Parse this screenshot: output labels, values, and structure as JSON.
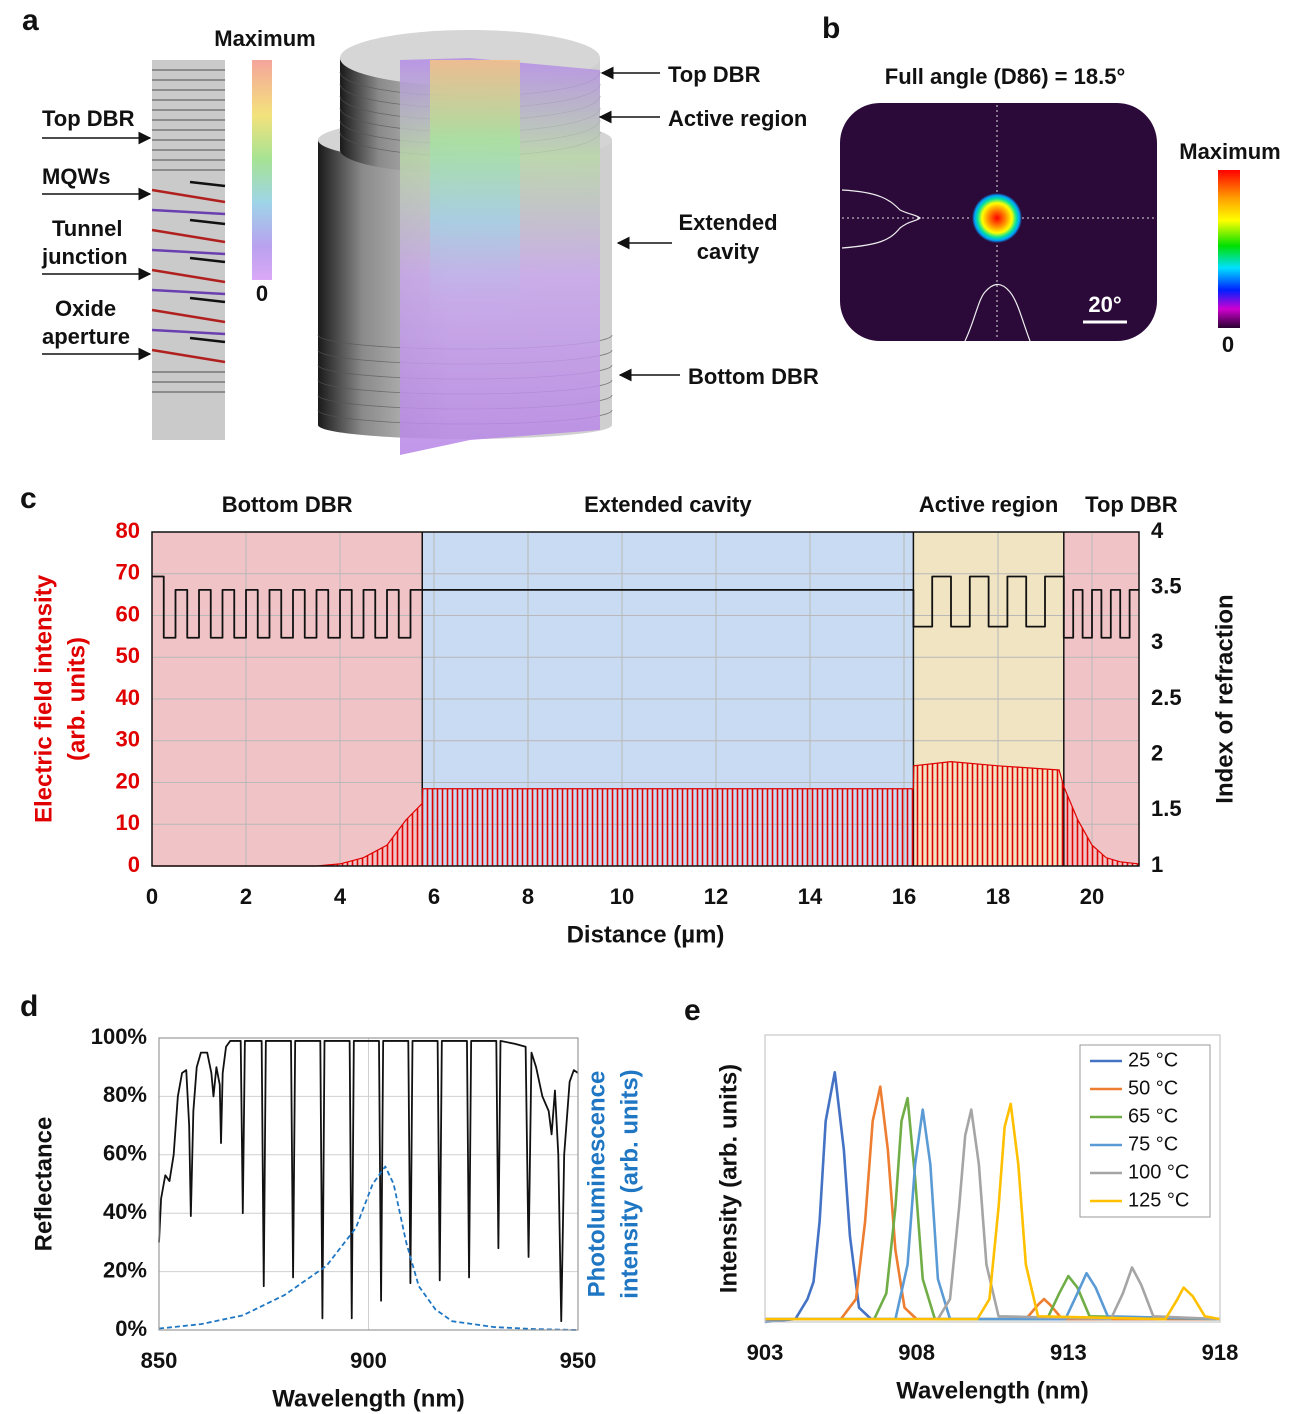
{
  "figure": {
    "panel_labels": [
      "a",
      "b",
      "c",
      "d",
      "e"
    ],
    "a": {
      "colorbar": {
        "max": "Maximum",
        "min": "0"
      },
      "layer_labels": [
        [
          "Top DBR"
        ],
        [
          "MQWs"
        ],
        [
          "Tunnel",
          "junction"
        ],
        [
          "Oxide",
          "aperture"
        ]
      ],
      "device_labels": [
        [
          "Top DBR"
        ],
        [
          "Active region"
        ],
        [
          "Extended",
          "cavity"
        ],
        [
          "Bottom DBR"
        ]
      ]
    },
    "b": {
      "title": "Full angle (D86) = 18.5°",
      "scale_bar": "20°",
      "colorbar": {
        "max": "Maximum",
        "min": "0"
      }
    }
  },
  "chart_data": [
    {
      "type": "line",
      "xlabel": "Distance (µm)",
      "ylabel": [
        "Electric field intensity",
        "(arb. units)"
      ],
      "y2label": [
        "Index of refraction"
      ],
      "ycolor": "#e00000",
      "xlim": [
        0,
        21
      ],
      "xticks": [
        0,
        2,
        4,
        6,
        8,
        10,
        12,
        14,
        16,
        18,
        20
      ],
      "ylim": [
        0,
        80
      ],
      "yticks": [
        0,
        10,
        20,
        30,
        40,
        50,
        60,
        70,
        80
      ],
      "y2lim": [
        1,
        4
      ],
      "y2ticks": [
        1,
        1.5,
        2,
        2.5,
        3,
        3.5,
        4
      ],
      "grid": true,
      "regions": [
        {
          "name": "Bottom DBR",
          "start": 0,
          "end": 5.75,
          "color": "#f0c4c6"
        },
        {
          "name": "Extended cavity",
          "start": 5.75,
          "end": 16.2,
          "color": "#c9dbf2"
        },
        {
          "name": "Active region",
          "start": 16.2,
          "end": 19.4,
          "color": "#f1e4c3"
        },
        {
          "name": "Top DBR",
          "start": 19.4,
          "end": 21,
          "color": "#f0c4c6"
        }
      ],
      "series": [
        {
          "kind": "area",
          "color": "#e00000",
          "x": [
            0,
            3.5,
            4,
            4.5,
            5,
            5.4,
            5.75,
            5.76,
            16.2,
            16.21,
            17,
            18,
            19.3,
            19.4,
            19.7,
            20,
            20.3,
            20.6,
            21
          ],
          "values": [
            0,
            0,
            0.5,
            2,
            5,
            11,
            15,
            18.5,
            18.5,
            24,
            25,
            24,
            23,
            19,
            11,
            5,
            2,
            1,
            0.5
          ]
        },
        {
          "kind": "line",
          "axis": "y2",
          "color": "#111111",
          "x": [
            0,
            0.25,
            0.25,
            0.5,
            0.5,
            0.75,
            0.75,
            1,
            1,
            1.25,
            1.25,
            1.5,
            1.5,
            1.75,
            1.75,
            2,
            2,
            2.25,
            2.25,
            2.5,
            2.5,
            2.75,
            2.75,
            3,
            3,
            3.25,
            3.25,
            3.5,
            3.5,
            3.75,
            3.75,
            4,
            4,
            4.25,
            4.25,
            4.5,
            4.5,
            4.75,
            4.75,
            5,
            5,
            5.25,
            5.25,
            5.5,
            5.5,
            16.2,
            16.2,
            16.6,
            16.6,
            17,
            17,
            17.4,
            17.4,
            17.8,
            17.8,
            18.2,
            18.2,
            18.6,
            18.6,
            19,
            19,
            19.4,
            19.4,
            19.6,
            19.6,
            19.8,
            19.8,
            20,
            20,
            20.2,
            20.2,
            20.4,
            20.4,
            20.6,
            20.6,
            20.8,
            20.8,
            21
          ],
          "values": [
            3.6,
            3.6,
            3.05,
            3.05,
            3.48,
            3.48,
            3.05,
            3.05,
            3.48,
            3.48,
            3.05,
            3.05,
            3.48,
            3.48,
            3.05,
            3.05,
            3.48,
            3.48,
            3.05,
            3.05,
            3.48,
            3.48,
            3.05,
            3.05,
            3.48,
            3.48,
            3.05,
            3.05,
            3.48,
            3.48,
            3.05,
            3.05,
            3.48,
            3.48,
            3.05,
            3.05,
            3.48,
            3.48,
            3.05,
            3.05,
            3.48,
            3.48,
            3.05,
            3.05,
            3.48,
            3.48,
            3.15,
            3.15,
            3.6,
            3.6,
            3.15,
            3.15,
            3.6,
            3.6,
            3.15,
            3.15,
            3.6,
            3.6,
            3.15,
            3.15,
            3.6,
            3.6,
            3.05,
            3.05,
            3.48,
            3.48,
            3.05,
            3.05,
            3.48,
            3.48,
            3.05,
            3.05,
            3.48,
            3.48,
            3.05,
            3.05,
            3.48,
            3.48
          ]
        }
      ]
    },
    {
      "type": "line",
      "xlabel": "Wavelength (nm)",
      "ylabel": [
        "Reflectance"
      ],
      "y2label": [
        "Photoluminescence",
        "intensity (arb. units)"
      ],
      "y2color": "#1f77c4",
      "xlim": [
        850,
        950
      ],
      "xticks": [
        850,
        900,
        950
      ],
      "ylim": [
        0,
        100
      ],
      "yticks": [
        {
          "value": 0,
          "label": "0%"
        },
        {
          "value": 20,
          "label": "20%"
        },
        {
          "value": 40,
          "label": "40%"
        },
        {
          "value": 60,
          "label": "60%"
        },
        {
          "value": 80,
          "label": "80%"
        },
        {
          "value": 100,
          "label": "100%"
        }
      ],
      "grid": true,
      "series": [
        {
          "kind": "line",
          "color": "#111111",
          "x": [
            850,
            850.5,
            851.5,
            852.5,
            853.5,
            854.5,
            855.5,
            856.5,
            857.2,
            857.6,
            858.2,
            859,
            860,
            861.5,
            862.5,
            863,
            863.7,
            864.5,
            864.8,
            865.2,
            866,
            867,
            869.5,
            870,
            870.5,
            874.5,
            875,
            875.5,
            881.5,
            882,
            882.5,
            888.5,
            889,
            889.5,
            895.5,
            896,
            896.5,
            902.5,
            903,
            903.5,
            909.5,
            910,
            910.5,
            916.5,
            917,
            917.5,
            923.5,
            924,
            924.5,
            930.5,
            931,
            931.5,
            935,
            937.5,
            938.2,
            938.9,
            940,
            941.5,
            943,
            943.7,
            944.5,
            945.3,
            946,
            946.7,
            948,
            949,
            950
          ],
          "values": [
            30,
            45,
            53,
            51,
            60,
            80,
            88,
            89,
            70,
            39,
            75,
            90,
            95,
            95,
            88,
            80,
            90,
            84,
            64,
            88,
            97,
            99,
            99,
            40,
            99,
            99,
            15,
            99,
            99,
            18,
            99,
            99,
            4,
            99,
            99,
            4,
            99,
            99,
            10,
            99,
            99,
            16,
            99,
            99,
            17,
            99,
            99,
            18,
            99,
            99,
            28,
            99,
            98,
            97,
            25,
            95,
            90,
            80,
            75,
            67,
            82,
            60,
            3,
            60,
            85,
            89,
            88
          ]
        },
        {
          "kind": "line",
          "dash": true,
          "color": "#1f77c4",
          "x": [
            850,
            860,
            870,
            880,
            890,
            897,
            901,
            904,
            906,
            909,
            912,
            916,
            920,
            930,
            940,
            950
          ],
          "values": [
            0.5,
            2,
            5,
            12,
            22,
            35,
            50,
            56,
            50,
            30,
            15,
            7,
            3,
            1,
            0.3,
            0
          ]
        }
      ]
    },
    {
      "type": "line",
      "xlabel": "Wavelength (nm)",
      "ylabel": [
        "Intensity (arb. units)"
      ],
      "xlim": [
        903,
        918
      ],
      "xticks": [
        903,
        908,
        913,
        918
      ],
      "ylim": [
        0,
        1
      ],
      "grid": false,
      "legend": "top-right",
      "series": [
        {
          "kind": "line",
          "name": "25 °C",
          "color": "#4472c4",
          "x": [
            903,
            904,
            904.4,
            904.6,
            904.8,
            905,
            905.3,
            905.6,
            905.8,
            906.1,
            906.5,
            918
          ],
          "values": [
            0,
            0.01,
            0.08,
            0.14,
            0.35,
            0.7,
            0.87,
            0.6,
            0.3,
            0.05,
            0.01,
            0.01
          ]
        },
        {
          "kind": "line",
          "name": "50 °C",
          "color": "#ed7d31",
          "x": [
            903,
            905.5,
            906,
            906.3,
            906.55,
            906.8,
            907.05,
            907.3,
            907.6,
            908,
            911.6,
            912,
            912.2,
            912.4,
            912.8,
            918
          ],
          "values": [
            0.01,
            0.01,
            0.08,
            0.35,
            0.7,
            0.82,
            0.6,
            0.25,
            0.05,
            0.01,
            0.01,
            0.06,
            0.08,
            0.06,
            0.01,
            0.01
          ]
        },
        {
          "kind": "line",
          "name": "65 °C",
          "color": "#70ad47",
          "x": [
            903,
            906.6,
            907,
            907.3,
            907.5,
            907.7,
            907.95,
            908.2,
            908.6,
            912.3,
            912.7,
            913,
            913.3,
            913.7,
            918
          ],
          "values": [
            0.01,
            0.01,
            0.1,
            0.4,
            0.7,
            0.78,
            0.5,
            0.15,
            0.01,
            0.01,
            0.1,
            0.16,
            0.12,
            0.02,
            0.01
          ]
        },
        {
          "kind": "line",
          "name": "75 °C",
          "color": "#5b9bd5",
          "x": [
            903,
            907.3,
            907.7,
            907.95,
            908.2,
            908.45,
            908.7,
            909.1,
            912.9,
            913.3,
            913.6,
            913.9,
            914.3,
            918
          ],
          "values": [
            0.01,
            0.01,
            0.2,
            0.55,
            0.74,
            0.55,
            0.15,
            0.01,
            0.01,
            0.1,
            0.17,
            0.12,
            0.02,
            0.01
          ]
        },
        {
          "kind": "line",
          "name": "100 °C",
          "color": "#a5a5a5",
          "x": [
            903,
            908.7,
            909.1,
            909.4,
            909.6,
            909.8,
            910.05,
            910.3,
            910.7,
            914.4,
            914.8,
            915.1,
            915.4,
            915.8,
            918
          ],
          "values": [
            0.01,
            0.01,
            0.08,
            0.4,
            0.65,
            0.74,
            0.55,
            0.2,
            0.02,
            0.01,
            0.1,
            0.19,
            0.13,
            0.02,
            0.01
          ]
        },
        {
          "kind": "line",
          "name": "125 °C",
          "color": "#ffc000",
          "x": [
            903,
            910,
            910.4,
            910.7,
            910.9,
            911.1,
            911.35,
            911.6,
            912,
            916.2,
            916.6,
            916.8,
            917.1,
            917.5,
            918
          ],
          "values": [
            0.01,
            0.01,
            0.08,
            0.4,
            0.68,
            0.76,
            0.55,
            0.2,
            0.02,
            0.01,
            0.08,
            0.12,
            0.09,
            0.02,
            0.01
          ]
        }
      ]
    }
  ]
}
